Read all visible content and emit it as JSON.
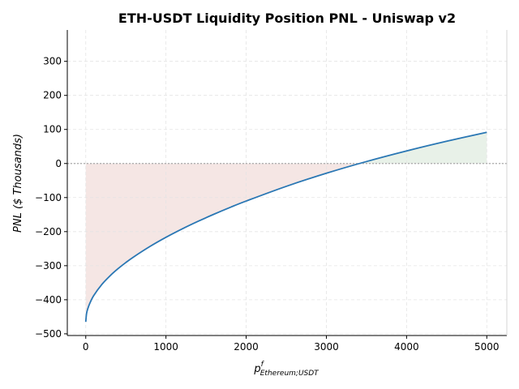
{
  "chart_data": {
    "type": "line",
    "title": "ETH-USDT Liquidity Position PNL - Uniswap v2",
    "xlabel": {
      "base": "p",
      "superscript": "f",
      "subscript": "Ethereum;USDT"
    },
    "ylabel": "PNL ($ Thousands)",
    "xlim": [
      -230,
      5250
    ],
    "ylim": [
      -505,
      392
    ],
    "x_ticks": [
      0,
      1000,
      2000,
      3000,
      4000,
      5000
    ],
    "y_ticks": [
      -500,
      -400,
      -300,
      -200,
      -100,
      0,
      100,
      200,
      300
    ],
    "y_tick_labels": [
      "−500",
      "−400",
      "−300",
      "−200",
      "−100",
      "0",
      "100",
      "200",
      "300"
    ],
    "grid": true,
    "reference_line_y": 0,
    "series": [
      {
        "color": "#2a77b4",
        "x": [
          0,
          10,
          25,
          50,
          100,
          200,
          300,
          400,
          500,
          600,
          800,
          1000,
          1200,
          1400,
          1600,
          1800,
          2000,
          2500,
          3000,
          3500,
          4000,
          4500,
          5000
        ],
        "y": [
          -464.8,
          -440.6,
          -426.6,
          -410.7,
          -387.6,
          -355.3,
          -330.4,
          -309.3,
          -290.7,
          -273.8,
          -243.6,
          -216.7,
          -192.3,
          -169.8,
          -148.7,
          -128.9,
          -110.2,
          -67.0,
          -28.6,
          5.8,
          36.9,
          65.3,
          91.7
        ]
      }
    ],
    "fills": [
      {
        "region": "negative",
        "color": "#f5e6e4"
      },
      {
        "region": "positive",
        "color": "#e8f1e8"
      }
    ],
    "colors": {
      "line": "#2a77b4",
      "grid": "#e4e4e4",
      "zero_line": "#a8a8a8",
      "axis": "#000000"
    }
  }
}
